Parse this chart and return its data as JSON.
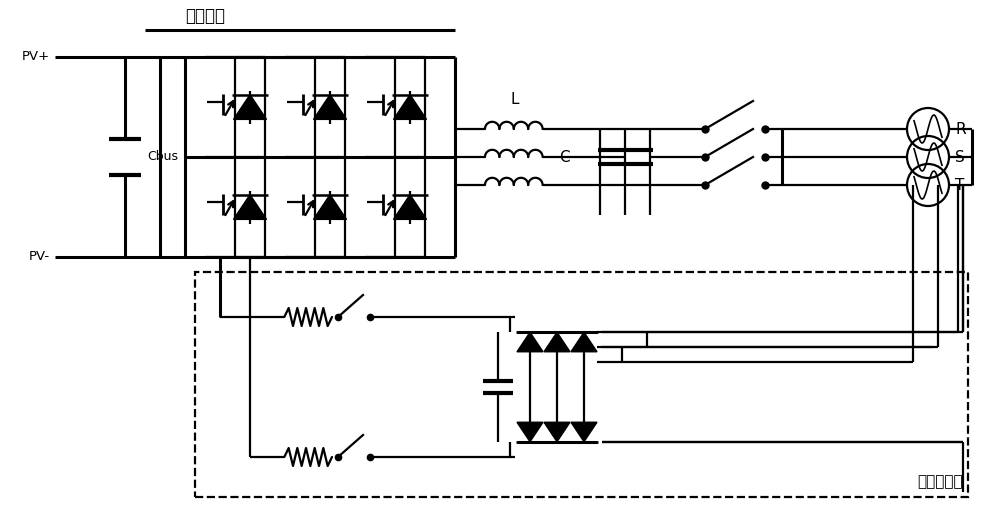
{
  "bg_color": "#ffffff",
  "line_color": "#000000",
  "label_dc_bus": "直流母线",
  "label_pv_plus": "PV+",
  "label_pv_minus": "PV-",
  "label_cbus": "Cbus",
  "label_L": "L",
  "label_C": "C",
  "label_R": "R",
  "label_S": "S",
  "label_T": "T",
  "label_precharge": "预充电电路",
  "figsize": [
    10.0,
    5.12
  ],
  "dpi": 100,
  "xlim": [
    0,
    10
  ],
  "ylim": [
    0,
    5.12
  ]
}
